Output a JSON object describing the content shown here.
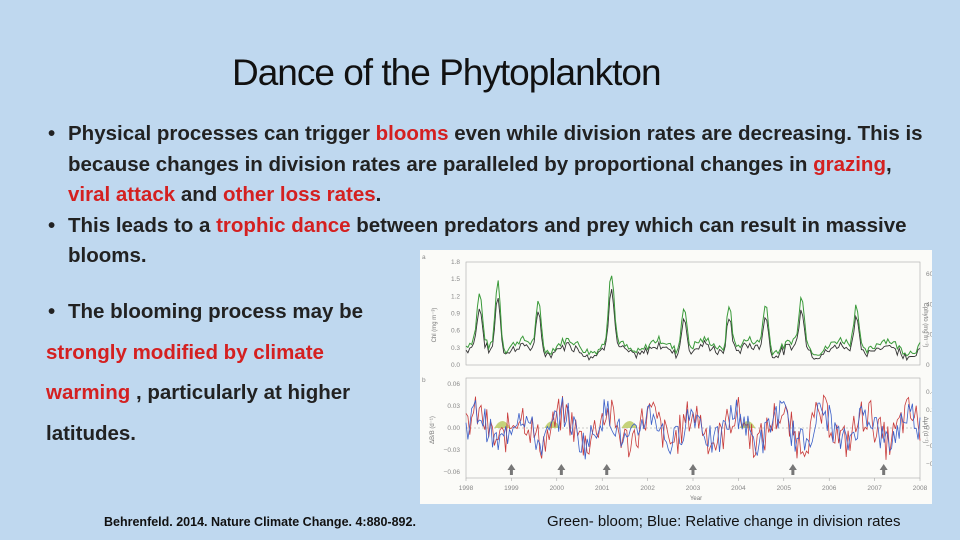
{
  "slide": {
    "title": "Dance of the Phytoplankton",
    "bullet_char": "•",
    "bullet1": {
      "t1": "Physical processes can trigger ",
      "h1": "blooms",
      "t2": " even while division rates are decreasing.  This is because changes in division rates are paralleled by proportional changes in ",
      "h2": "grazing",
      "t3": ", ",
      "h3": "viral attack",
      "t4": " and ",
      "h4": "other loss rates",
      "t5": "."
    },
    "bullet2": {
      "t1": "This leads to a ",
      "h1": "trophic dance",
      "t2": " between predators and prey which can result in massive blooms."
    },
    "bullet3": {
      "t1": "The blooming process may be",
      "h1": "strongly modified by climate warming",
      "t2": " , particularly at higher latitudes."
    },
    "citation": "Behrenfeld.  2014.  Nature Climate Change.  4:880-892.",
    "legend_caption": "Green- bloom; Blue: Relative change in division rates"
  },
  "figure": {
    "panel_a_label": "a",
    "panel_b_label": "b",
    "x_label": "Year",
    "x_ticks": [
      "1998",
      "1999",
      "2000",
      "2001",
      "2002",
      "2003",
      "2004",
      "2005",
      "2006",
      "2007",
      "2008"
    ],
    "a_left_ticks": [
      "1.8",
      "1.5",
      "1.2",
      "0.9",
      "0.6",
      "0.3",
      "0.0"
    ],
    "a_right_ticks": [
      "60",
      "40",
      "20",
      "0"
    ],
    "a_left_label": "Chl (mg m⁻³)",
    "a_right_label": "Cphyto (mg m⁻³)",
    "b_left_ticks": [
      "0.06",
      "0.03",
      "0.00",
      "−0.03",
      "−0.06"
    ],
    "b_right_ticks": [
      "0.4",
      "0.2",
      "0",
      "−0.2",
      "−0.4"
    ],
    "b_left_label": "ΔB/B (d⁻¹)",
    "b_right_label": "Δμ/μ (d⁻¹)",
    "colors": {
      "green": "#3a9a3a",
      "dark": "#333333",
      "red": "#c83a3a",
      "blue": "#3b5fc8",
      "fill": "#b8c85a"
    }
  }
}
